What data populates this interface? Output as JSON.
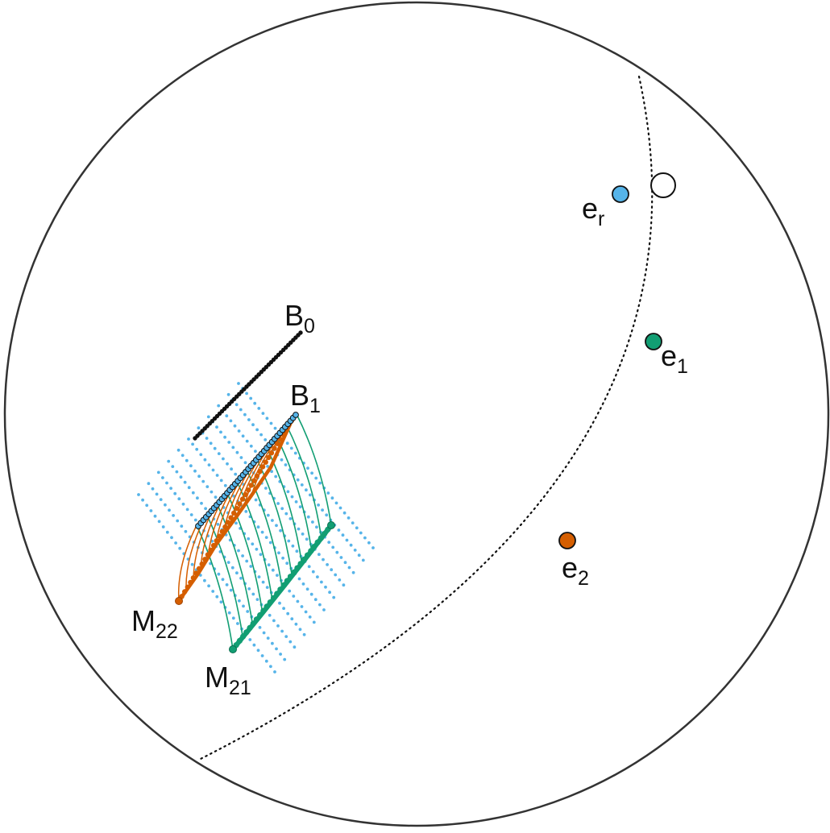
{
  "colors": {
    "outline": "#333333",
    "dots_black": "#111111",
    "blue": "#56b4e9",
    "green": "#129e73",
    "orange": "#d55e00",
    "white": "#ffffff"
  },
  "labels": {
    "er": {
      "main": "e",
      "sub": "r"
    },
    "e1": {
      "main": "e",
      "sub": "1"
    },
    "e2": {
      "main": "e",
      "sub": "2"
    },
    "b0": {
      "main": "B",
      "sub": "0"
    },
    "b1": {
      "main": "B",
      "sub": "1"
    },
    "m22": {
      "main": "M",
      "sub": "22"
    },
    "m21": {
      "main": "M",
      "sub": "21"
    }
  }
}
